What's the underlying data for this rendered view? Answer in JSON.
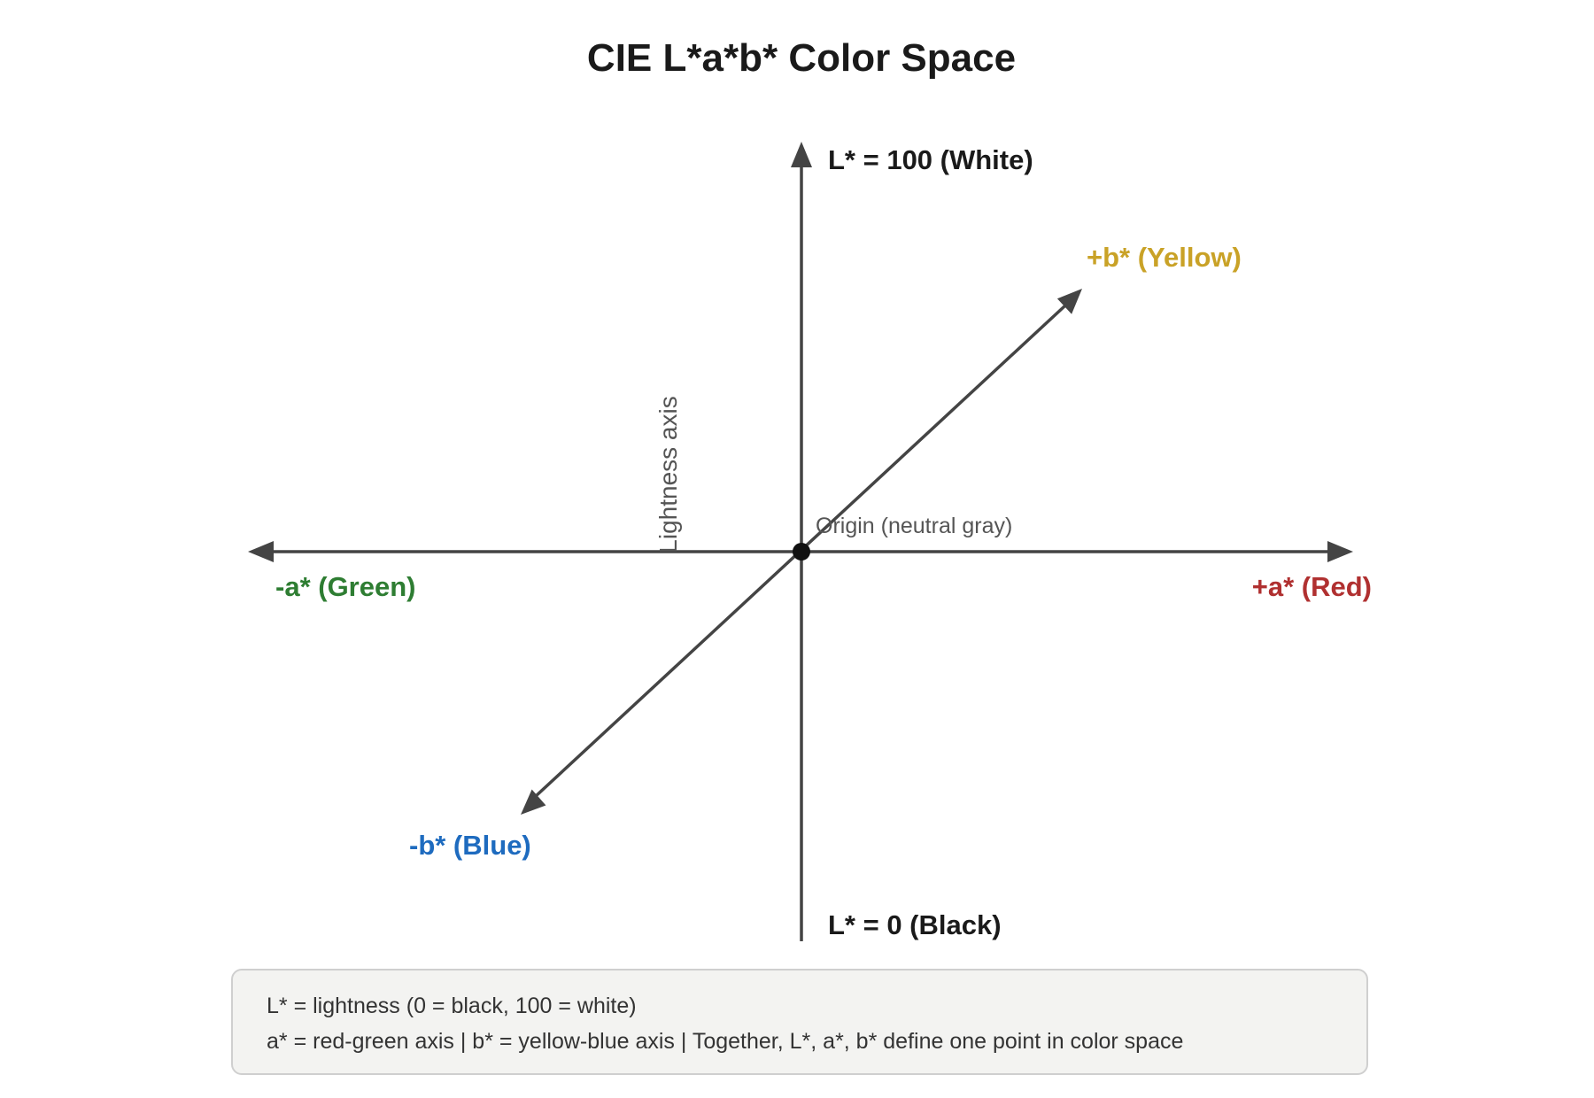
{
  "title": "CIE L*a*b* Color Space",
  "axes": {
    "l_top": {
      "label": "L* = 100 (White)",
      "color": "#1a1a1a"
    },
    "l_bottom": {
      "label": "L* = 0 (Black)",
      "color": "#1a1a1a"
    },
    "a_pos": {
      "label": "+a* (Red)",
      "color": "#b03030"
    },
    "a_neg": {
      "label": "-a* (Green)",
      "color": "#2e7d32"
    },
    "b_pos": {
      "label": "+b* (Yellow)",
      "color": "#c9a227"
    },
    "b_neg": {
      "label": "-b* (Blue)",
      "color": "#1e6bbf"
    }
  },
  "lightness_axis_label": "Lightness axis",
  "origin_label": "Origin (neutral gray)",
  "legend": {
    "line1": "L* = lightness (0 = black, 100 = white)",
    "line2": "a* = red-green axis | b* = yellow-blue axis | Together, L*, a*, b* define one point in color space"
  },
  "colors": {
    "axis_line": "#444444",
    "origin_dot": "#111111"
  }
}
